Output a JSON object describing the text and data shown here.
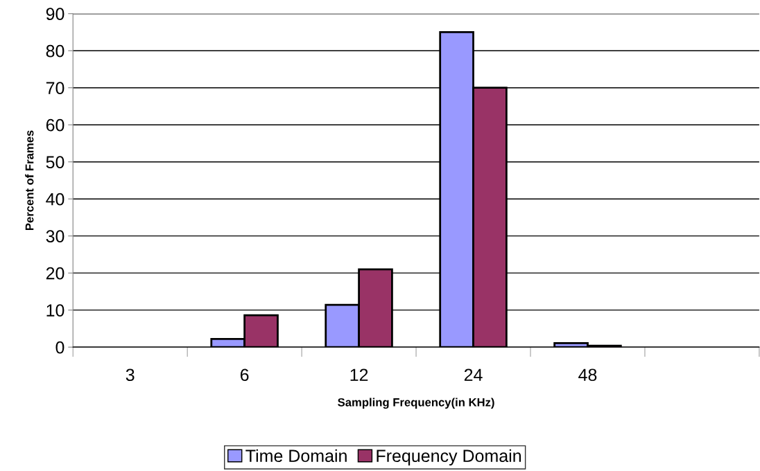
{
  "chart_data": {
    "type": "bar",
    "xlabel": "Sampling Frequency(in KHz)",
    "ylabel": "Percent of Frames",
    "categories": [
      "3",
      "6",
      "12",
      "24",
      "48",
      null
    ],
    "series": [
      {
        "name": "Time Domain",
        "color": "#9999ff",
        "values": [
          null,
          2.2,
          11.4,
          85,
          1.1,
          null
        ]
      },
      {
        "name": "Frequency Domain",
        "color": "#993366",
        "values": [
          null,
          8.6,
          21,
          70,
          0.4,
          null
        ]
      }
    ],
    "ylim": [
      0,
      90
    ],
    "yticks": [
      0,
      10,
      20,
      30,
      40,
      50,
      60,
      70,
      80,
      90
    ],
    "grid": "y",
    "legend": "bottom"
  }
}
